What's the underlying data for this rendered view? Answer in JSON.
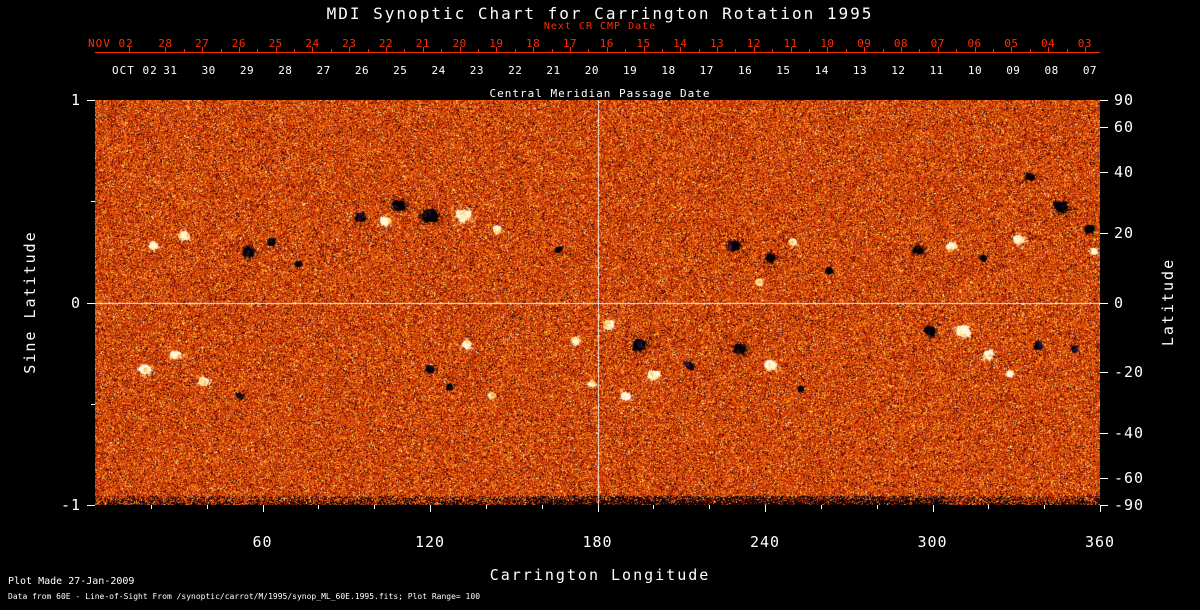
{
  "colors": {
    "background": "#000000",
    "text": "#ffffff",
    "red_axis": "#ff2d00",
    "crosshair": "#ffffff"
  },
  "footer": {
    "line1": "Plot Made 27-Jan-2009",
    "line2": "Data from 60E - Line-of-Sight From /synoptic/carrot/M/1995/synop_ML_60E.1995.fits; Plot Range=  100"
  },
  "chart_data": {
    "type": "heatmap",
    "title": "MDI Synoptic Chart for Carrington Rotation 1995",
    "xlabel": "Carrington Longitude",
    "ylabel_left": "Sine Latitude",
    "ylabel_right": "Latitude",
    "xlim": [
      0,
      360
    ],
    "ylim_sine": [
      -1,
      1
    ],
    "x_ticks": [
      60,
      120,
      180,
      240,
      300,
      360
    ],
    "x_minor_step": 20,
    "left_ticks": [
      "1",
      "0",
      "-1"
    ],
    "left_minor_ticks": [
      0.5,
      -0.5
    ],
    "right_ticks_deg": [
      90,
      60,
      40,
      20,
      0,
      -20,
      -40,
      -60,
      -90
    ],
    "crosshair": {
      "lon": 180,
      "sine_lat": 0
    },
    "top_axis_next_cr": {
      "label": "Next CR CMP Date",
      "month_label": "NOV 02",
      "days": [
        "28",
        "27",
        "26",
        "25",
        "24",
        "23",
        "22",
        "21",
        "20",
        "19",
        "18",
        "17",
        "16",
        "15",
        "14",
        "13",
        "12",
        "11",
        "10",
        "09",
        "08",
        "07",
        "06",
        "05",
        "04",
        "03"
      ]
    },
    "top_axis_cmp": {
      "label": "Central Meridian Passage Date",
      "month_label": "OCT 02",
      "days": [
        "31",
        "30",
        "29",
        "28",
        "27",
        "26",
        "25",
        "24",
        "23",
        "22",
        "21",
        "20",
        "19",
        "18",
        "17",
        "16",
        "15",
        "14",
        "13",
        "12",
        "11",
        "10",
        "09",
        "08",
        "07"
      ]
    },
    "palette": {
      "bands": [
        {
          "upto": 0.045,
          "rgb": [
            38,
            0,
            10
          ]
        },
        {
          "upto": 0.13,
          "rgb": [
            112,
            14,
            4
          ]
        },
        {
          "upto": 0.46,
          "rgb": [
            186,
            44,
            6
          ]
        },
        {
          "upto": 0.76,
          "rgb": [
            224,
            82,
            10
          ]
        },
        {
          "upto": 0.93,
          "rgb": [
            247,
            126,
            22
          ]
        },
        {
          "upto": 0.985,
          "rgb": [
            255,
            190,
            64
          ]
        },
        {
          "upto": 1.01,
          "rgb": [
            255,
            242,
            196
          ]
        }
      ]
    },
    "active_regions": [
      [
        21,
        0.28,
        6,
        1,
        0.8
      ],
      [
        32,
        0.33,
        7,
        1,
        0.9
      ],
      [
        55,
        0.25,
        9,
        -1,
        0.9
      ],
      [
        63,
        0.3,
        6,
        -1,
        0.7
      ],
      [
        73,
        0.19,
        5,
        -1,
        0.6
      ],
      [
        95,
        0.42,
        8,
        -1,
        0.8
      ],
      [
        104,
        0.4,
        7,
        1,
        0.6
      ],
      [
        109,
        0.48,
        10,
        -1,
        0.9
      ],
      [
        120,
        0.43,
        12,
        -1,
        1.0
      ],
      [
        132,
        0.43,
        11,
        1,
        1.0
      ],
      [
        144,
        0.36,
        6,
        1,
        0.7
      ],
      [
        166,
        0.26,
        5,
        -1,
        0.5
      ],
      [
        229,
        0.28,
        9,
        -1,
        0.9
      ],
      [
        242,
        0.22,
        8,
        -1,
        0.8
      ],
      [
        238,
        0.1,
        5,
        1,
        0.6
      ],
      [
        250,
        0.3,
        6,
        1,
        0.5
      ],
      [
        263,
        0.16,
        5,
        -1,
        0.5
      ],
      [
        295,
        0.26,
        8,
        -1,
        0.8
      ],
      [
        307,
        0.28,
        7,
        1,
        0.8
      ],
      [
        318,
        0.22,
        5,
        -1,
        0.5
      ],
      [
        331,
        0.31,
        8,
        1,
        0.9
      ],
      [
        335,
        0.62,
        6,
        -1,
        0.6
      ],
      [
        346,
        0.47,
        10,
        -1,
        0.9
      ],
      [
        356,
        0.36,
        7,
        -1,
        0.8
      ],
      [
        358,
        0.25,
        5,
        1,
        0.5
      ],
      [
        18,
        -0.33,
        8,
        1,
        0.9
      ],
      [
        29,
        -0.26,
        7,
        1,
        0.8
      ],
      [
        39,
        -0.39,
        7,
        1,
        0.8
      ],
      [
        52,
        -0.46,
        4,
        -1,
        0.5
      ],
      [
        120,
        -0.33,
        6,
        -1,
        0.7
      ],
      [
        133,
        -0.21,
        7,
        1,
        0.8
      ],
      [
        142,
        -0.46,
        5,
        1,
        0.6
      ],
      [
        127,
        -0.42,
        5,
        -1,
        0.5
      ],
      [
        172,
        -0.19,
        6,
        1,
        0.8
      ],
      [
        184,
        -0.11,
        7,
        1,
        0.9
      ],
      [
        195,
        -0.21,
        10,
        -1,
        1.0
      ],
      [
        200,
        -0.36,
        8,
        1,
        0.9
      ],
      [
        190,
        -0.46,
        7,
        1,
        0.8
      ],
      [
        178,
        -0.4,
        5,
        1,
        0.6
      ],
      [
        213,
        -0.31,
        6,
        -1,
        0.7
      ],
      [
        231,
        -0.23,
        9,
        -1,
        1.0
      ],
      [
        242,
        -0.31,
        8,
        1,
        0.9
      ],
      [
        253,
        -0.43,
        4,
        -1,
        0.5
      ],
      [
        299,
        -0.14,
        8,
        -1,
        0.9
      ],
      [
        311,
        -0.14,
        10,
        1,
        1.0
      ],
      [
        320,
        -0.26,
        7,
        1,
        0.8
      ],
      [
        328,
        -0.35,
        5,
        1,
        0.5
      ],
      [
        338,
        -0.21,
        6,
        -1,
        0.7
      ],
      [
        351,
        -0.23,
        4,
        -1,
        0.5
      ]
    ]
  }
}
